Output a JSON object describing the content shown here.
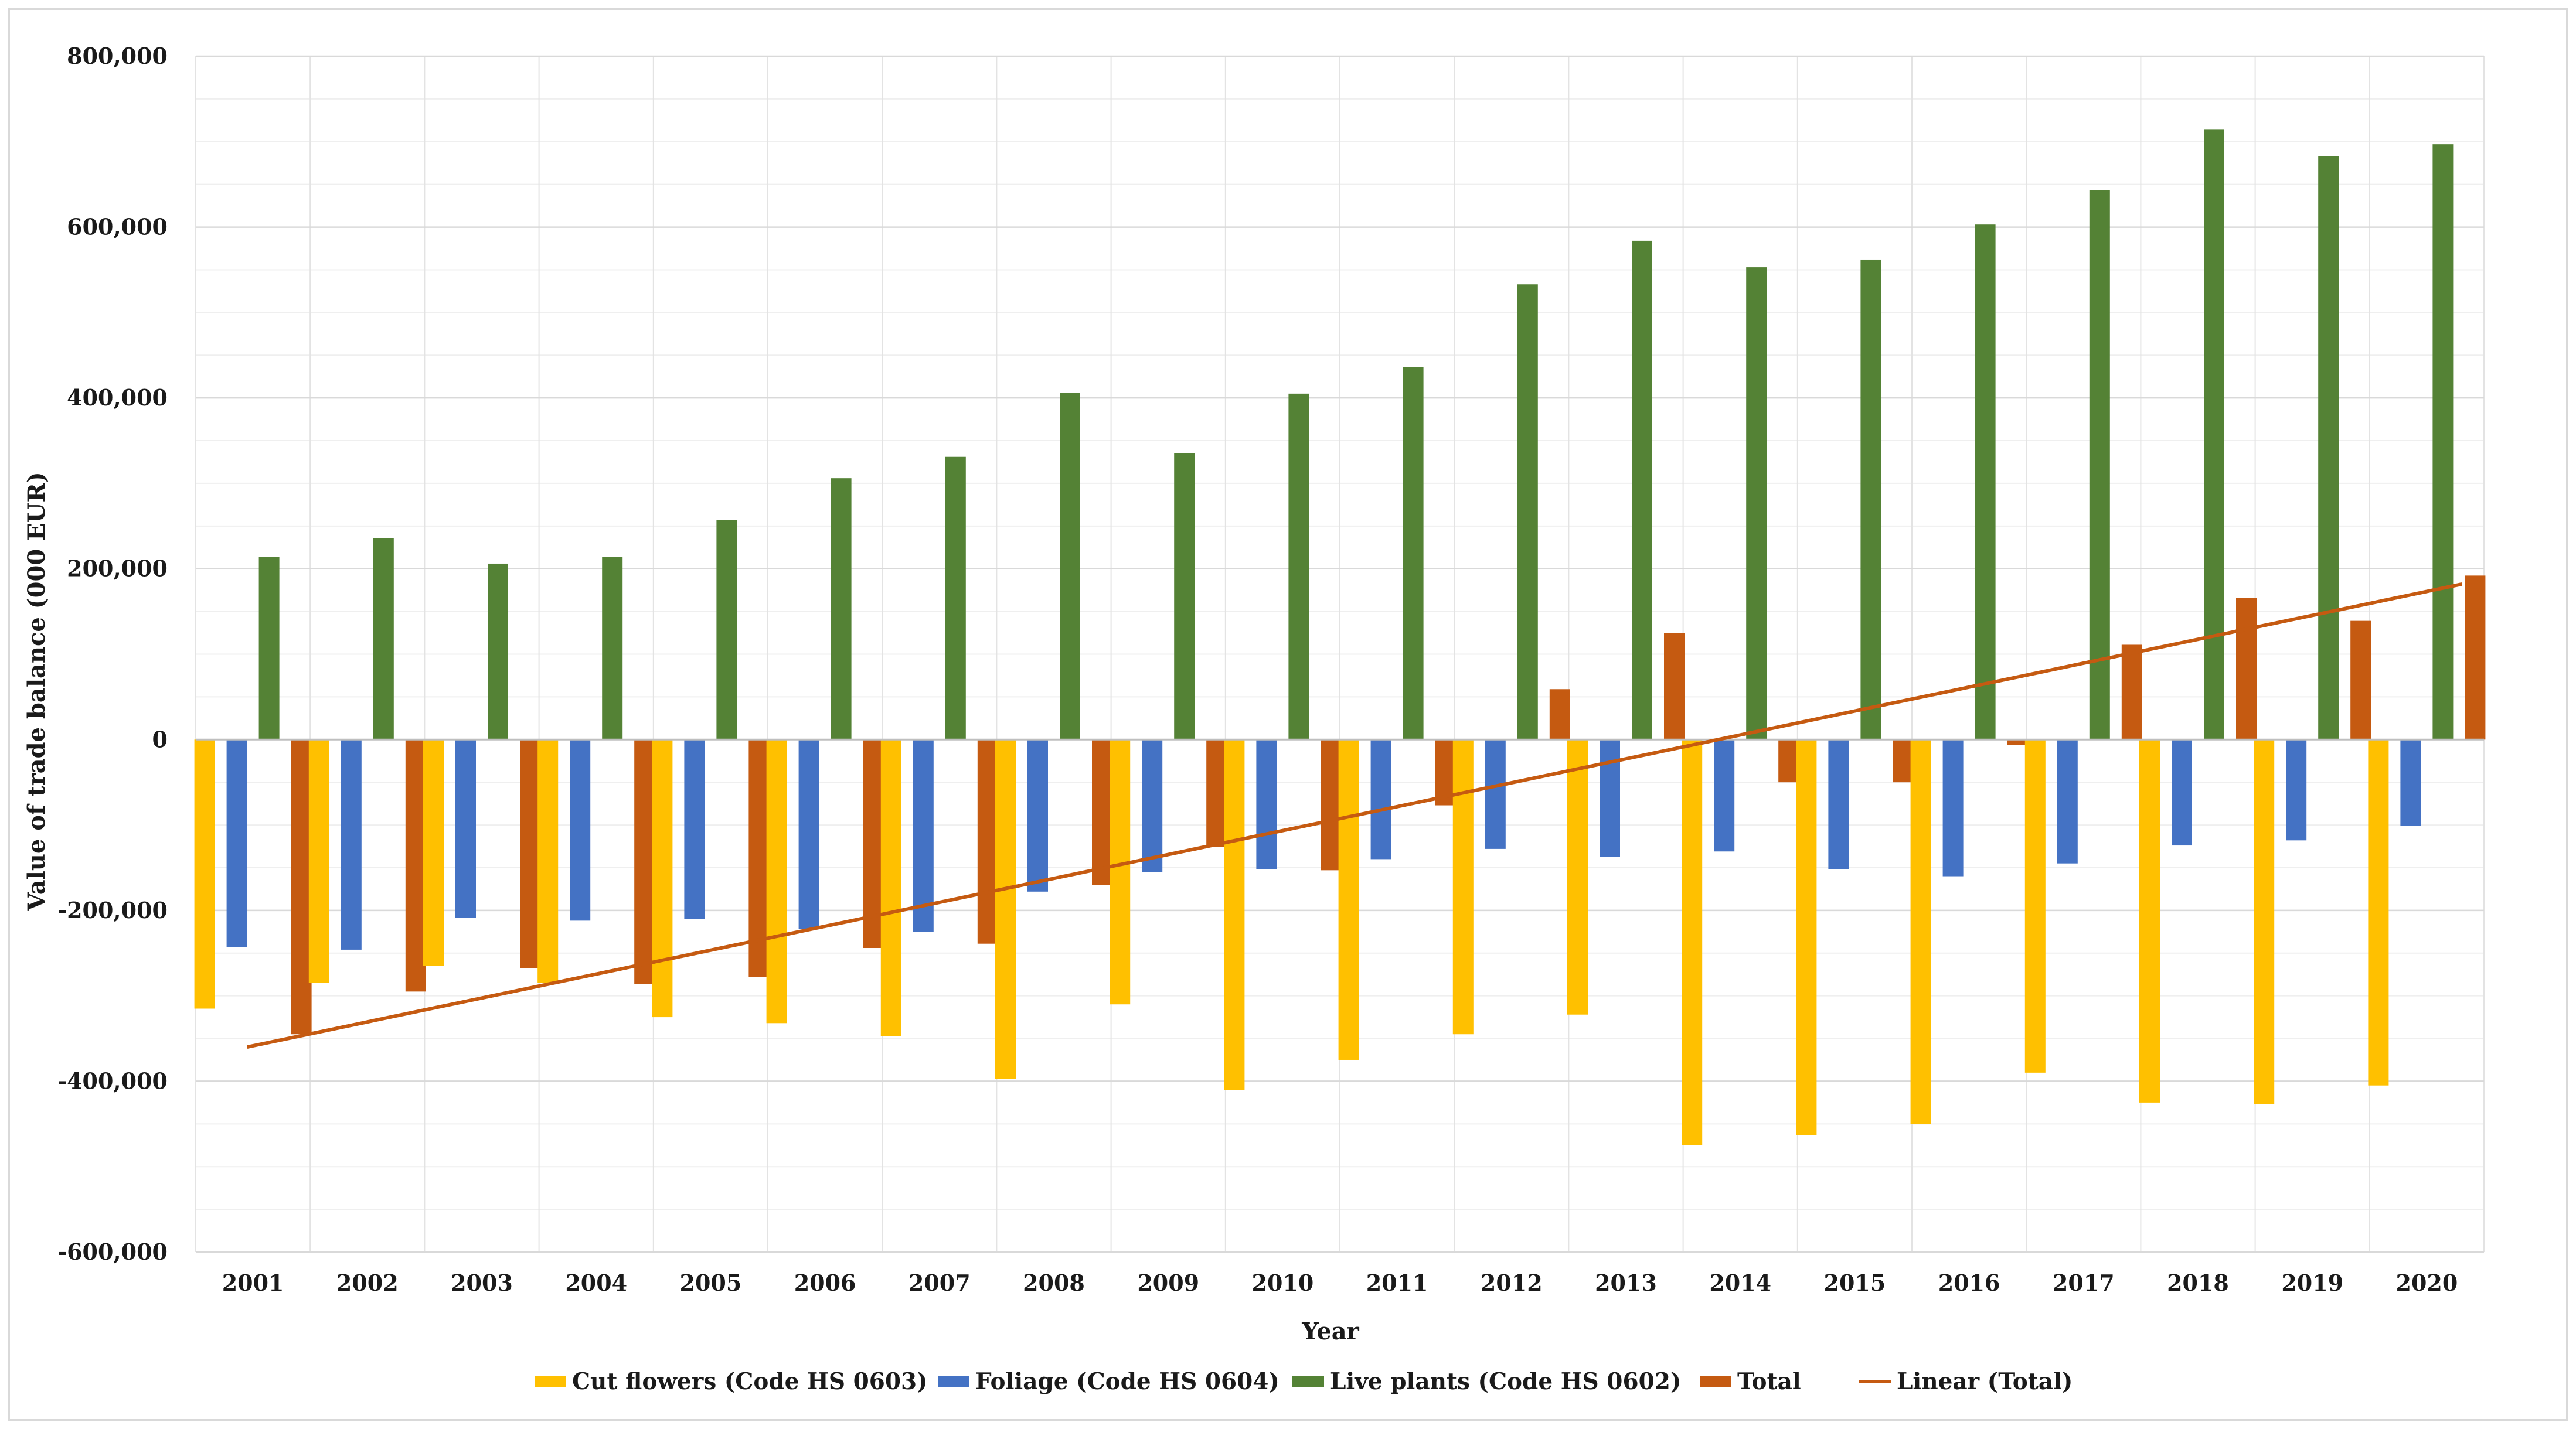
{
  "chart_data": {
    "type": "bar",
    "title": "",
    "xlabel": "Year",
    "ylabel": "Value of trade balance (000 EUR)",
    "ylim": [
      -600000,
      800000
    ],
    "yticks": [
      -600000,
      -400000,
      -200000,
      0,
      200000,
      400000,
      600000,
      800000
    ],
    "ytick_labels": [
      "-600,000",
      "-400,000",
      "-200,000",
      "0",
      "200,000",
      "400,000",
      "600,000",
      "800,000"
    ],
    "grid": true,
    "legend_position": "bottom",
    "categories": [
      "2001",
      "2002",
      "2003",
      "2004",
      "2005",
      "2006",
      "2007",
      "2008",
      "2009",
      "2010",
      "2011",
      "2012",
      "2013",
      "2014",
      "2015",
      "2016",
      "2017",
      "2018",
      "2019",
      "2020"
    ],
    "series": [
      {
        "name": "Cut flowers (Code HS 0603)",
        "color": "#FFC000",
        "values": [
          -315000,
          -285000,
          -265000,
          -285000,
          -325000,
          -332000,
          -347000,
          -397000,
          -310000,
          -410000,
          -375000,
          -345000,
          -322000,
          -475000,
          -463000,
          -450000,
          -390000,
          -425000,
          -427000,
          -405000
        ]
      },
      {
        "name": "Foliage (Code HS 0604)",
        "color": "#4472C4",
        "values": [
          -243000,
          -246000,
          -209000,
          -212000,
          -210000,
          -222000,
          -225000,
          -178000,
          -155000,
          -152000,
          -140000,
          -128000,
          -137000,
          -131000,
          -152000,
          -160000,
          -145000,
          -124000,
          -118000,
          -101000
        ]
      },
      {
        "name": "Live plants (Code HS 0602)",
        "color": "#548235",
        "values": [
          214000,
          236000,
          206000,
          214000,
          257000,
          306000,
          331000,
          406000,
          335000,
          405000,
          436000,
          533000,
          584000,
          553000,
          562000,
          603000,
          643000,
          714000,
          683000,
          697000
        ]
      },
      {
        "name": "Total",
        "color": "#C55A11",
        "values": [
          -345000,
          -295000,
          -268000,
          -286000,
          -278000,
          -244000,
          -239000,
          -170000,
          -126000,
          -153000,
          -77000,
          59000,
          125000,
          -50000,
          -50000,
          -6000,
          111000,
          166000,
          139000,
          192000
        ]
      }
    ],
    "trendline": {
      "name": "Linear (Total)",
      "color": "#C55A11",
      "of_series": "Total",
      "start": -360000,
      "end": 182000
    }
  }
}
